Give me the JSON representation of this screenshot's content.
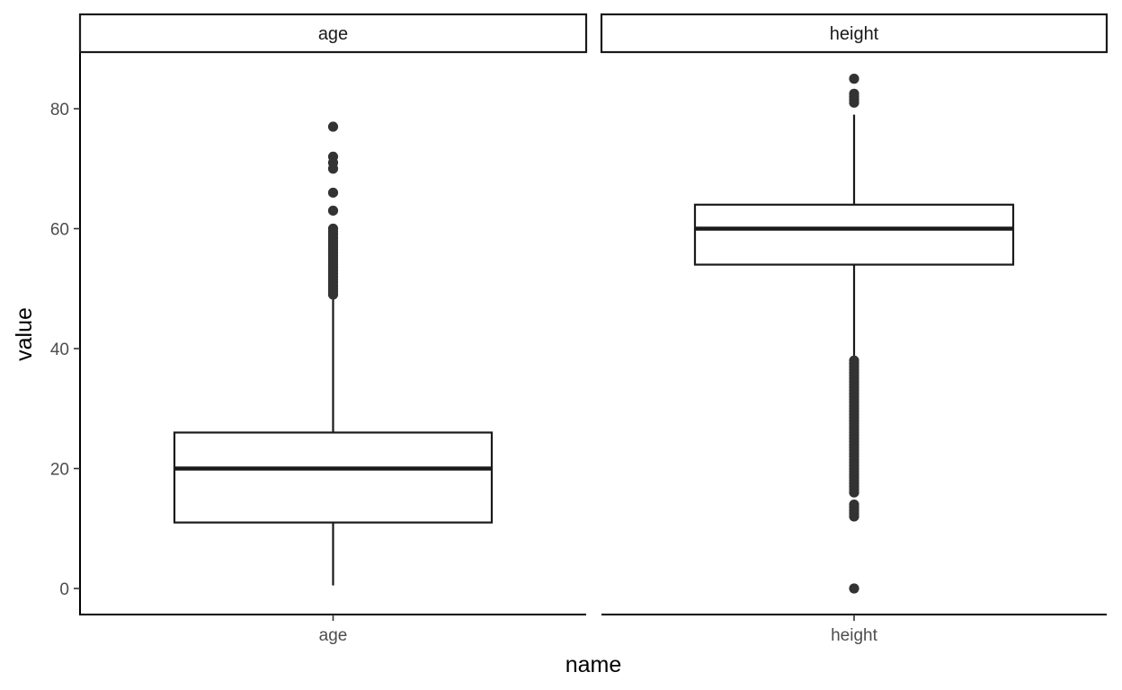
{
  "chart_data": {
    "type": "boxplot",
    "xlabel": "name",
    "ylabel": "value",
    "ylim": [
      -4,
      89
    ],
    "y_ticks": [
      "0",
      "20",
      "40",
      "60",
      "80"
    ],
    "grid": false,
    "colors": {
      "line": "#1a1a1a",
      "point": "#333333",
      "axis": "#000000"
    },
    "panels": [
      {
        "strip": "age",
        "category": "age",
        "box": {
          "whisker_low": 0.5,
          "q1": 11,
          "median": 20,
          "q3": 26,
          "whisker_high": 48.5
        },
        "outliers": [
          49,
          49.5,
          50,
          50.5,
          51,
          51.5,
          52,
          52.5,
          53,
          53.5,
          54,
          54.5,
          55,
          55.5,
          56,
          56.5,
          57,
          57.5,
          58,
          58.5,
          59,
          59.5,
          60,
          63,
          66,
          70,
          71,
          72,
          77
        ]
      },
      {
        "strip": "height",
        "category": "height",
        "box": {
          "whisker_low": 38.5,
          "q1": 54,
          "median": 60,
          "q3": 64,
          "whisker_high": 79
        },
        "outliers": [
          0,
          12,
          12.5,
          13,
          13.5,
          14,
          16,
          16.5,
          17,
          17.5,
          18,
          18.5,
          19,
          19.5,
          20,
          20.5,
          21,
          21.5,
          22,
          22.5,
          23,
          23.5,
          24,
          24.5,
          25,
          25.5,
          26,
          26.5,
          27,
          27.5,
          28,
          28.5,
          29,
          29.5,
          30,
          30.5,
          31,
          31.5,
          32,
          32.5,
          33,
          33.5,
          34,
          34.5,
          35,
          35.5,
          36,
          36.5,
          37,
          37.5,
          38,
          81,
          81.5,
          82,
          82.5,
          85
        ]
      }
    ]
  }
}
